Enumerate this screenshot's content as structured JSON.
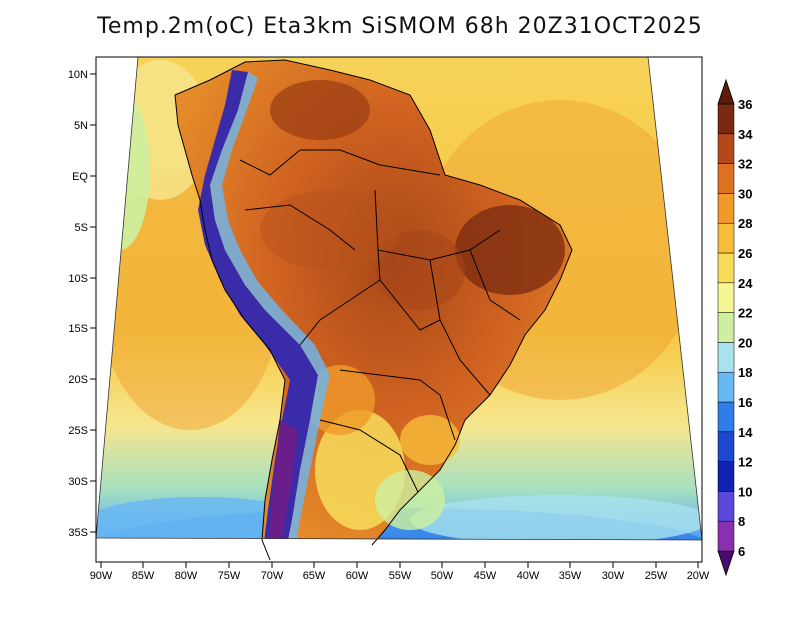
{
  "title": "Temp.2m(oC) Eta3km SiSMOM 68h 20Z31OCT2025",
  "map": {
    "lat_labels": [
      "10N",
      "5N",
      "EQ",
      "5S",
      "10S",
      "15S",
      "20S",
      "25S",
      "30S",
      "35S"
    ],
    "lon_labels": [
      "90W",
      "85W",
      "80W",
      "75W",
      "70W",
      "65W",
      "60W",
      "55W",
      "50W",
      "45W",
      "40W",
      "35W",
      "30W",
      "25W",
      "20W"
    ],
    "variable": "2m air temperature",
    "units": "oC"
  },
  "colorbar": {
    "labels": [
      "6",
      "8",
      "10",
      "12",
      "14",
      "16",
      "18",
      "20",
      "22",
      "24",
      "26",
      "28",
      "30",
      "32",
      "34",
      "36"
    ],
    "colors": [
      "#4b0a6e",
      "#8a2fb0",
      "#5a48d8",
      "#1022b0",
      "#1e48d0",
      "#2f7ee8",
      "#6ab8f2",
      "#a8e2ee",
      "#cdf0a0",
      "#f6f694",
      "#f7dd5a",
      "#f8bd3a",
      "#f09a2a",
      "#de7120",
      "#b3491a",
      "#7a2a10",
      "#5a1c08"
    ]
  },
  "colors": {
    "ocean_warm": "#f6c83e",
    "ocean_mid": "#f6e68e",
    "ocean_cool": "#8fd4ec",
    "ocean_cold": "#2f7ee8",
    "land_hot": "#c8561e",
    "land_very_hot": "#8a3a14",
    "andes_cold": "#3a2ba8",
    "border": "#000000"
  }
}
